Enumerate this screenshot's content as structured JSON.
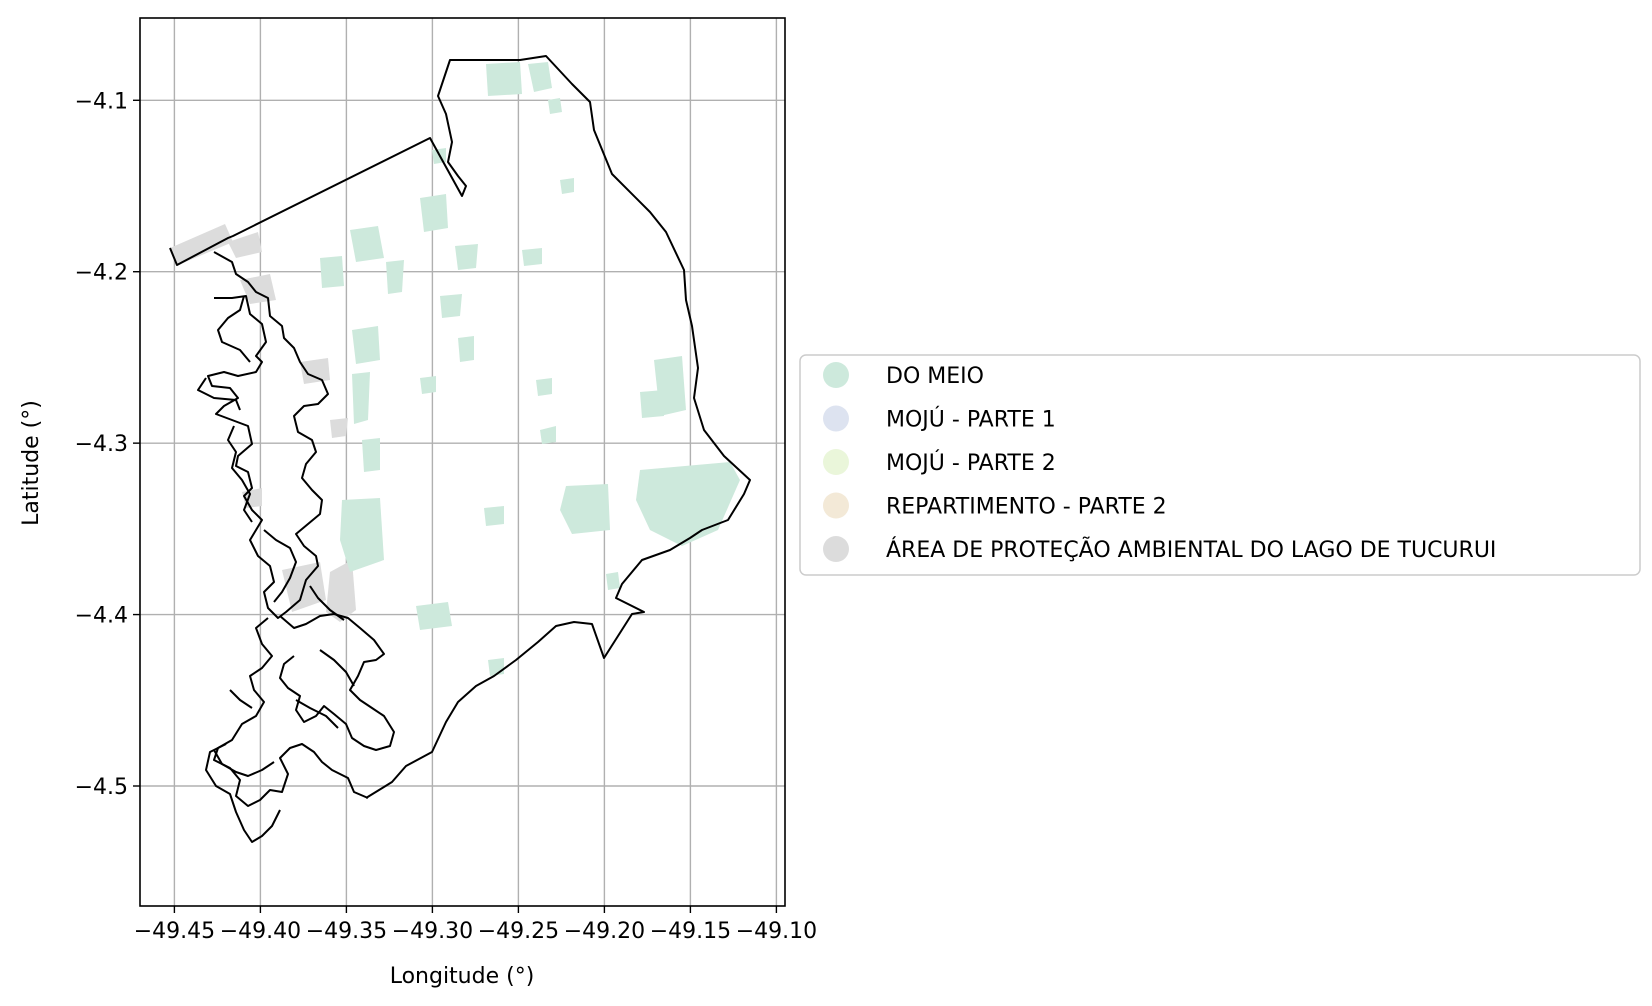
{
  "map": {
    "xlabel": "Longitude (°)",
    "ylabel": "Latitude (°)",
    "xlim": [
      -49.47,
      -49.095
    ],
    "ylim": [
      -4.57,
      -4.052
    ],
    "grid": true,
    "x_ticks": [
      {
        "value": -49.45,
        "label": "−49.45"
      },
      {
        "value": -49.4,
        "label": "−49.40"
      },
      {
        "value": -49.35,
        "label": "−49.35"
      },
      {
        "value": -49.3,
        "label": "−49.30"
      },
      {
        "value": -49.25,
        "label": "−49.25"
      },
      {
        "value": -49.2,
        "label": "−49.20"
      },
      {
        "value": -49.15,
        "label": "−49.15"
      },
      {
        "value": -49.1,
        "label": "−49.10"
      }
    ],
    "y_ticks": [
      {
        "value": -4.1,
        "label": "−4.1"
      },
      {
        "value": -4.2,
        "label": "−4.2"
      },
      {
        "value": -4.3,
        "label": "−4.3"
      },
      {
        "value": -4.4,
        "label": "−4.4"
      },
      {
        "value": -4.5,
        "label": "−4.5"
      }
    ],
    "legend": {
      "placement": "outside-right",
      "entries": [
        {
          "label": "DO MEIO",
          "color": "#cde9dc"
        },
        {
          "label": "MOJÚ - PARTE 1",
          "color": "#dde3f0"
        },
        {
          "label": "MOJÚ - PARTE 2",
          "color": "#eaf6da"
        },
        {
          "label": "REPARTIMENTO - PARTE 2",
          "color": "#f3e9d7"
        },
        {
          "label": "ÁREA DE PROTEÇÃO AMBIENTAL DO LAGO DE TUCURUI",
          "color": "#dcdcdc"
        }
      ]
    },
    "colors": {
      "boundary": "#000000",
      "grid": "#b0b0b0",
      "do_meio": "#cde9dc",
      "apa_tucurui": "#dcdcdc"
    }
  }
}
